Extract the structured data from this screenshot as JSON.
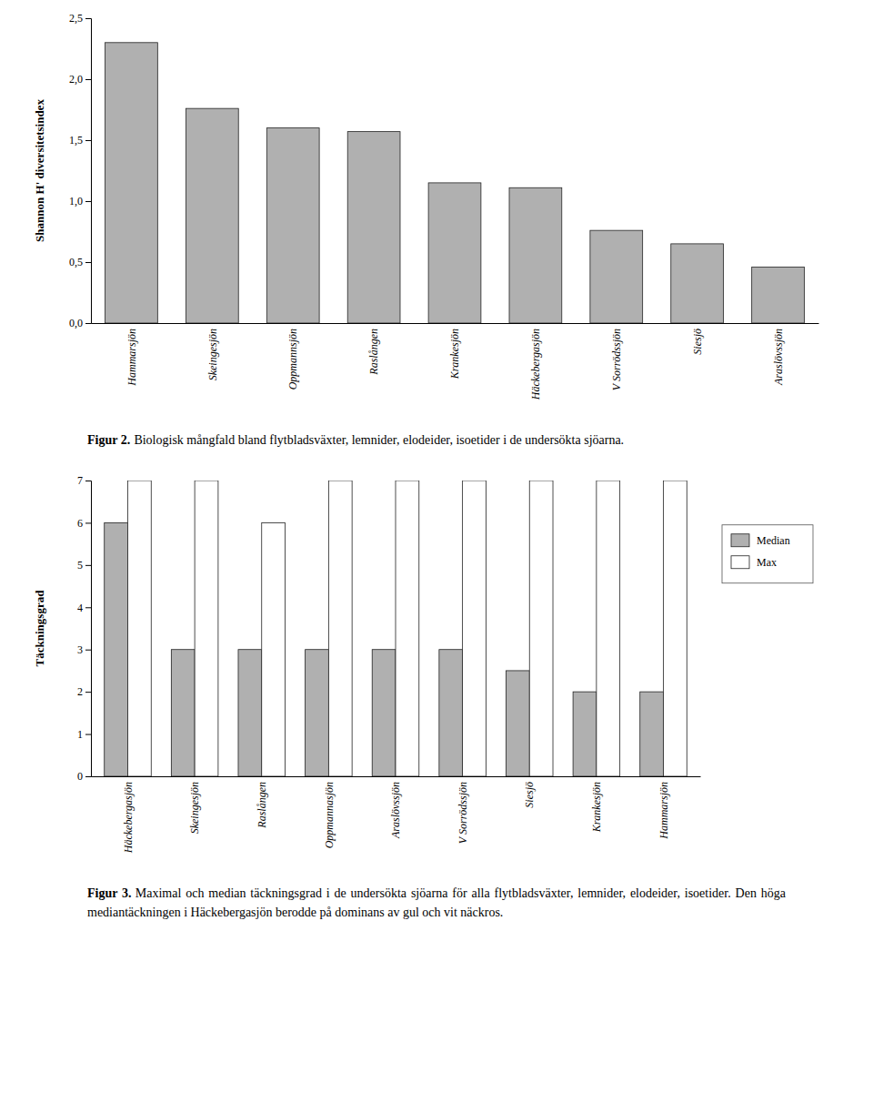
{
  "chart_data": [
    {
      "type": "bar",
      "categories": [
        "Hammarsjön",
        "Skeingesjön",
        "Oppmannsjön",
        "Raslången",
        "Krankesjön",
        "Häckebergasjön",
        "V Sorrödssjön",
        "Siesjö",
        "Araslövssjön"
      ],
      "values": [
        2.3,
        1.76,
        1.6,
        1.57,
        1.15,
        1.11,
        0.76,
        0.65,
        0.46
      ],
      "color": "#b0b0b0",
      "y_label": "Shannon H' diversitetsindex",
      "ylim": [
        0,
        2.5
      ],
      "yticks": [
        {
          "value": 0.0,
          "label": "0,0"
        },
        {
          "value": 0.5,
          "label": "0,5"
        },
        {
          "value": 1.0,
          "label": "1,0"
        },
        {
          "value": 1.5,
          "label": "1,5"
        },
        {
          "value": 2.0,
          "label": "2,0"
        },
        {
          "value": 2.5,
          "label": "2,5"
        }
      ],
      "annotations": [
        "Figur 2.",
        "Biologisk mångfald bland flytbladsväxter, lemnider, elodeider, isoetider i de undersökta sjöarna."
      ]
    },
    {
      "type": "bar",
      "categories": [
        "Häckebergasjön",
        "Skeingesjön",
        "Raslången",
        "Oppmannasjön",
        "Araslövssjön",
        "V Sorrödssjön",
        "Siesjö",
        "Krankesjön",
        "Hammarsjön"
      ],
      "series": [
        {
          "name": "Median",
          "color": "#b0b0b0",
          "values": [
            6.0,
            3.0,
            3.0,
            3.0,
            3.0,
            3.0,
            2.5,
            2.0,
            2.0
          ]
        },
        {
          "name": "Max",
          "color": "#ffffff",
          "values": [
            7.0,
            7.0,
            6.0,
            7.0,
            7.0,
            7.0,
            7.0,
            7.0,
            7.0
          ]
        }
      ],
      "y_label": "Täckningsgrad",
      "ylim": [
        0,
        7
      ],
      "yticks": [
        0,
        1,
        2,
        3,
        4,
        5,
        6,
        7
      ],
      "legend": "right",
      "annotations": [
        "Figur 3.",
        "Maximal och median täckningsgrad i de undersökta sjöarna för alla flytbladsväxter, lemnider, elodeider, isoetider. Den höga mediantäckningen i Häckebergasjön berodde på dominans av gul och vit näckros."
      ]
    }
  ]
}
